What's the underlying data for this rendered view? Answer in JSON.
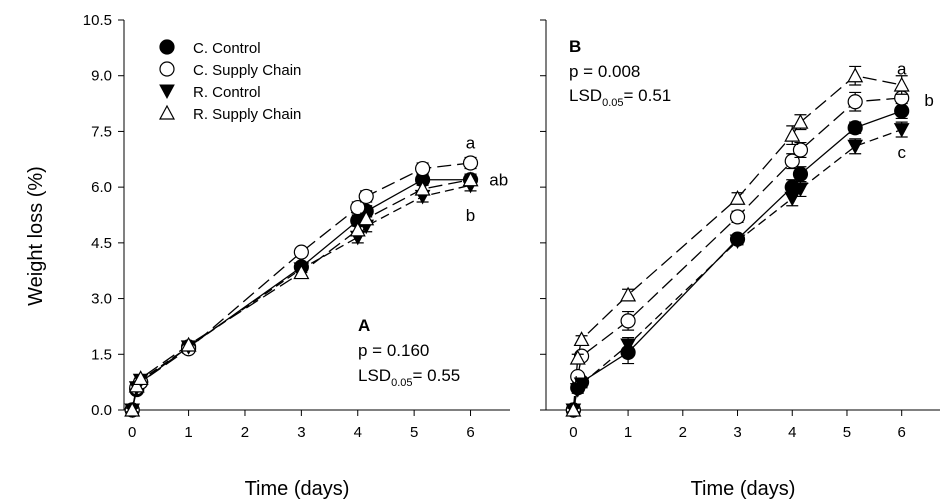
{
  "figure": {
    "ylabel": "Weight loss (%)"
  },
  "chart_data": [
    {
      "type": "line",
      "panel": "A",
      "xlabel": "Time (days)",
      "ylabel": "Weight loss (%)",
      "xlim": [
        -0.5,
        6.7
      ],
      "ylim": [
        0,
        10.5
      ],
      "xticks": [
        "0",
        "1",
        "2",
        "3",
        "4",
        "5",
        "6"
      ],
      "yticks": [
        "0.0",
        "1.5",
        "3.0",
        "4.5",
        "6.0",
        "7.5",
        "9.0",
        "10.5"
      ],
      "stats": {
        "p": "p = 0.160",
        "lsd_prefix": "LSD",
        "lsd_sub": "0.05",
        "lsd_value": "= 0.55"
      },
      "series": [
        {
          "name": "C. Control",
          "marker": "circle-filled",
          "dash": "solid",
          "x": [
            0,
            0.08,
            0.15,
            1,
            3,
            4,
            4.15,
            5.15,
            6
          ],
          "y": [
            0.0,
            0.55,
            0.75,
            1.7,
            3.85,
            5.1,
            5.35,
            6.2,
            6.2
          ],
          "err": [
            0.05,
            0.08,
            0.08,
            0.1,
            0.1,
            0.15,
            0.15,
            0.15,
            0.15
          ]
        },
        {
          "name": "C. Supply Chain",
          "marker": "circle-open",
          "dash": "longdash",
          "x": [
            0,
            0.08,
            0.15,
            1,
            3,
            4,
            4.15,
            5.15,
            6
          ],
          "y": [
            0.0,
            0.6,
            0.75,
            1.65,
            4.25,
            5.45,
            5.75,
            6.5,
            6.65
          ],
          "err": [
            0.05,
            0.08,
            0.08,
            0.1,
            0.1,
            0.15,
            0.15,
            0.15,
            0.15
          ]
        },
        {
          "name": "R. Control",
          "marker": "triangle-down-filled",
          "dash": "dash",
          "x": [
            0,
            0.08,
            0.15,
            1,
            3,
            4,
            4.15,
            5.15,
            6
          ],
          "y": [
            0.0,
            0.6,
            0.8,
            1.7,
            3.8,
            4.65,
            4.95,
            5.75,
            6.05
          ],
          "err": [
            0.05,
            0.08,
            0.08,
            0.1,
            0.1,
            0.15,
            0.15,
            0.15,
            0.15
          ]
        },
        {
          "name": "R. Supply Chain",
          "marker": "triangle-up-open",
          "dash": "longdash",
          "x": [
            0,
            0.08,
            0.15,
            1,
            3,
            4,
            4.15,
            5.15,
            6
          ],
          "y": [
            0.0,
            0.65,
            0.85,
            1.75,
            3.7,
            4.85,
            5.15,
            5.95,
            6.2
          ],
          "err": [
            0.05,
            0.08,
            0.08,
            0.1,
            0.1,
            0.15,
            0.15,
            0.15,
            0.15
          ]
        }
      ],
      "annotations": [
        {
          "text": "a",
          "x": 6,
          "y": 7.2
        },
        {
          "text": "ab",
          "x": 6.5,
          "y": 6.2
        },
        {
          "text": "b",
          "x": 6,
          "y": 5.25
        }
      ]
    },
    {
      "type": "line",
      "panel": "B",
      "xlabel": "Time (days)",
      "xlim": [
        -0.5,
        6.7
      ],
      "ylim": [
        0,
        10.5
      ],
      "xticks": [
        "0",
        "1",
        "2",
        "3",
        "4",
        "5",
        "6"
      ],
      "stats": {
        "p": "p = 0.008",
        "lsd_prefix": "LSD",
        "lsd_sub": "0.05",
        "lsd_value": "= 0.51"
      },
      "series": [
        {
          "name": "C. Control",
          "marker": "circle-filled",
          "dash": "solid",
          "x": [
            0,
            0.08,
            0.15,
            1,
            3,
            4,
            4.15,
            5.15,
            6
          ],
          "y": [
            0.0,
            0.6,
            0.75,
            1.55,
            4.6,
            6.0,
            6.35,
            7.6,
            8.05
          ],
          "err": [
            0.05,
            0.1,
            0.1,
            0.3,
            0.1,
            0.2,
            0.2,
            0.15,
            0.2
          ]
        },
        {
          "name": "C. Supply Chain",
          "marker": "circle-open",
          "dash": "longdash",
          "x": [
            0,
            0.08,
            0.15,
            1,
            3,
            4,
            4.15,
            5.15,
            6
          ],
          "y": [
            0.0,
            0.9,
            1.45,
            2.4,
            5.2,
            6.7,
            7.0,
            8.3,
            8.4
          ],
          "err": [
            0.05,
            0.1,
            0.1,
            0.25,
            0.15,
            0.2,
            0.2,
            0.25,
            0.25
          ]
        },
        {
          "name": "R. Control",
          "marker": "triangle-down-filled",
          "dash": "dash",
          "x": [
            0,
            0.08,
            0.15,
            1,
            3,
            4,
            4.15,
            5.15,
            6
          ],
          "y": [
            0.0,
            0.55,
            0.7,
            1.75,
            4.55,
            5.7,
            5.95,
            7.1,
            7.55
          ],
          "err": [
            0.05,
            0.1,
            0.1,
            0.2,
            0.1,
            0.2,
            0.2,
            0.2,
            0.2
          ]
        },
        {
          "name": "R. Supply Chain",
          "marker": "triangle-up-open",
          "dash": "longdash",
          "x": [
            0,
            0.08,
            0.15,
            1,
            3,
            4,
            4.15,
            5.15,
            6
          ],
          "y": [
            0.0,
            1.4,
            1.9,
            3.1,
            5.7,
            7.4,
            7.75,
            9.0,
            8.75
          ],
          "err": [
            0.05,
            0.1,
            0.1,
            0.15,
            0.15,
            0.25,
            0.2,
            0.25,
            0.25
          ]
        }
      ],
      "annotations": [
        {
          "text": "a",
          "x": 6,
          "y": 9.2
        },
        {
          "text": "b",
          "x": 6.5,
          "y": 8.35
        },
        {
          "text": "c",
          "x": 6,
          "y": 6.95
        }
      ]
    }
  ]
}
